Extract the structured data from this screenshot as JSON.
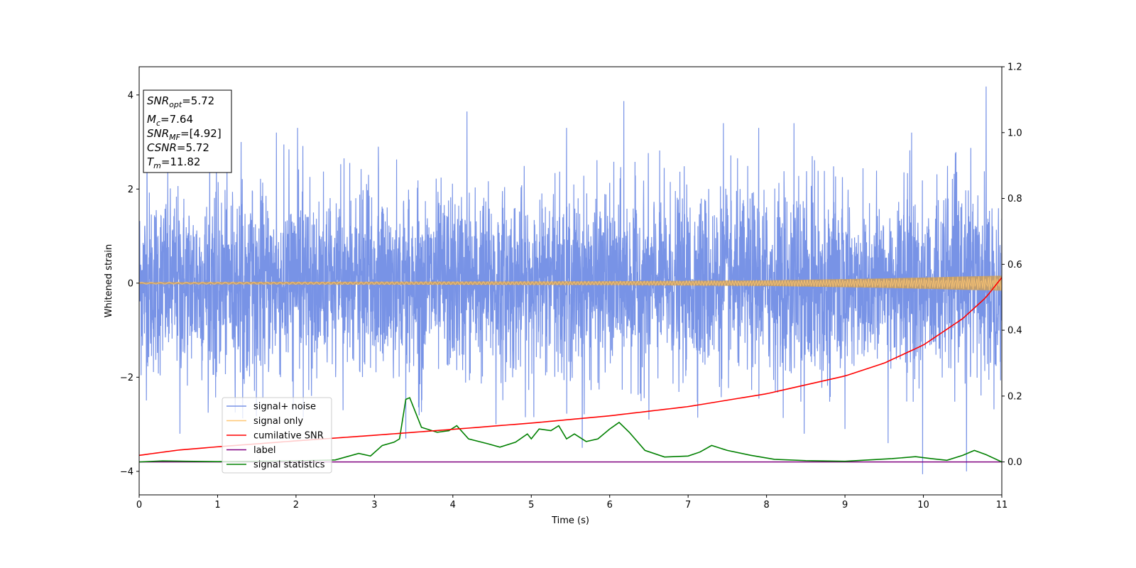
{
  "chart_data": {
    "type": "line",
    "title": "",
    "xlabel": "Time (s)",
    "ylabel": "Whitened strain",
    "xlim": [
      0,
      11
    ],
    "ylim_left": [
      -4.5,
      4.6
    ],
    "ylim_right": [
      -0.1,
      1.2
    ],
    "x_ticks": [
      "0",
      "1",
      "2",
      "3",
      "4",
      "5",
      "6",
      "7",
      "8",
      "9",
      "10",
      "11"
    ],
    "y_ticks_left": [
      "−4",
      "−2",
      "0",
      "2",
      "4"
    ],
    "y_ticks_right": [
      "0.0",
      "0.2",
      "0.4",
      "0.6",
      "0.8",
      "1.0",
      "1.2"
    ],
    "grid": false,
    "legend_position": "lower-left",
    "colors": {
      "noise": "#7893e6",
      "signal": "#ffc773",
      "signal_band": "#c19e6f",
      "cumulative": "#ff0000",
      "label": "#800080",
      "statistics": "#008000"
    },
    "annotation": {
      "snr_opt": {
        "sym": "SNR",
        "sub": "opt",
        "val": "=5.72"
      },
      "mc": {
        "sym": "M",
        "sub": "c",
        "val": "=7.64"
      },
      "snr_mf": {
        "sym": "SNR",
        "sub": "MF",
        "val": "=[4.92]"
      },
      "csnr": {
        "sym": "CSNR",
        "sub": "",
        "val": "=5.72"
      },
      "tm": {
        "sym": "T",
        "sub": "m",
        "val": "=11.82"
      }
    },
    "series": [
      {
        "name": "signal+ noise",
        "axis": "left",
        "description_stats": {
          "envelope_typical": [
            -1.8,
            2.5
          ],
          "peak_max": 4.18,
          "peak_min": -4.06
        },
        "spikes": [
          {
            "x": 0.1,
            "y": 3.6
          },
          {
            "x": 0.52,
            "y": -3.2
          },
          {
            "x": 0.9,
            "y": 3.0
          },
          {
            "x": 1.3,
            "y": 3.0
          },
          {
            "x": 1.75,
            "y": 3.2
          },
          {
            "x": 2.02,
            "y": 3.3
          },
          {
            "x": 2.6,
            "y": -2.7
          },
          {
            "x": 3.05,
            "y": 2.9
          },
          {
            "x": 3.4,
            "y": -3.3
          },
          {
            "x": 4.18,
            "y": 3.65
          },
          {
            "x": 4.55,
            "y": -3.0
          },
          {
            "x": 5.45,
            "y": 3.3
          },
          {
            "x": 5.65,
            "y": -3.5
          },
          {
            "x": 6.18,
            "y": 3.87
          },
          {
            "x": 6.5,
            "y": -2.9
          },
          {
            "x": 7.45,
            "y": 3.4
          },
          {
            "x": 7.9,
            "y": 3.3
          },
          {
            "x": 8.35,
            "y": 3.4
          },
          {
            "x": 8.48,
            "y": -3.2
          },
          {
            "x": 9.0,
            "y": -3.1
          },
          {
            "x": 9.55,
            "y": -3.4
          },
          {
            "x": 9.85,
            "y": 3.2
          },
          {
            "x": 9.99,
            "y": -4.06
          },
          {
            "x": 10.55,
            "y": -4.0
          },
          {
            "x": 10.8,
            "y": 4.18
          }
        ]
      },
      {
        "name": "signal only",
        "axis": "left",
        "amplitude_points": [
          [
            0,
            0.02
          ],
          [
            6,
            0.04
          ],
          [
            8,
            0.06
          ],
          [
            9.5,
            0.1
          ],
          [
            10.5,
            0.14
          ],
          [
            11,
            0.16
          ]
        ]
      },
      {
        "name": "cumilative SNR",
        "axis": "right",
        "points": [
          [
            0,
            0.02
          ],
          [
            0.5,
            0.036
          ],
          [
            1,
            0.046
          ],
          [
            2,
            0.064
          ],
          [
            3,
            0.081
          ],
          [
            4,
            0.099
          ],
          [
            5,
            0.118
          ],
          [
            6,
            0.14
          ],
          [
            7,
            0.168
          ],
          [
            8,
            0.207
          ],
          [
            9,
            0.261
          ],
          [
            9.5,
            0.3
          ],
          [
            10,
            0.355
          ],
          [
            10.5,
            0.435
          ],
          [
            10.8,
            0.5
          ],
          [
            11,
            0.56
          ]
        ]
      },
      {
        "name": "label",
        "axis": "right",
        "points": [
          [
            0,
            0.0
          ],
          [
            11,
            0.0
          ]
        ]
      },
      {
        "name": "signal statistics",
        "axis": "right",
        "points": [
          [
            0,
            0.0
          ],
          [
            0.3,
            0.003
          ],
          [
            0.6,
            0.002
          ],
          [
            1.0,
            0.001
          ],
          [
            1.5,
            0.002
          ],
          [
            2.0,
            0.003
          ],
          [
            2.5,
            0.006
          ],
          [
            2.8,
            0.026
          ],
          [
            2.95,
            0.018
          ],
          [
            3.1,
            0.05
          ],
          [
            3.25,
            0.06
          ],
          [
            3.32,
            0.07
          ],
          [
            3.4,
            0.19
          ],
          [
            3.45,
            0.195
          ],
          [
            3.6,
            0.105
          ],
          [
            3.8,
            0.09
          ],
          [
            3.95,
            0.095
          ],
          [
            4.05,
            0.11
          ],
          [
            4.2,
            0.07
          ],
          [
            4.45,
            0.055
          ],
          [
            4.6,
            0.045
          ],
          [
            4.8,
            0.06
          ],
          [
            4.95,
            0.085
          ],
          [
            5.0,
            0.07
          ],
          [
            5.1,
            0.1
          ],
          [
            5.25,
            0.095
          ],
          [
            5.35,
            0.11
          ],
          [
            5.45,
            0.07
          ],
          [
            5.55,
            0.085
          ],
          [
            5.7,
            0.062
          ],
          [
            5.85,
            0.07
          ],
          [
            6.0,
            0.1
          ],
          [
            6.12,
            0.12
          ],
          [
            6.25,
            0.09
          ],
          [
            6.45,
            0.035
          ],
          [
            6.7,
            0.015
          ],
          [
            7.0,
            0.018
          ],
          [
            7.15,
            0.03
          ],
          [
            7.3,
            0.05
          ],
          [
            7.5,
            0.035
          ],
          [
            7.8,
            0.02
          ],
          [
            8.1,
            0.008
          ],
          [
            8.5,
            0.004
          ],
          [
            9.0,
            0.002
          ],
          [
            9.3,
            0.006
          ],
          [
            9.6,
            0.01
          ],
          [
            9.9,
            0.016
          ],
          [
            10.1,
            0.01
          ],
          [
            10.3,
            0.005
          ],
          [
            10.5,
            0.02
          ],
          [
            10.65,
            0.035
          ],
          [
            10.8,
            0.022
          ],
          [
            11.0,
            0.0
          ]
        ]
      }
    ]
  }
}
